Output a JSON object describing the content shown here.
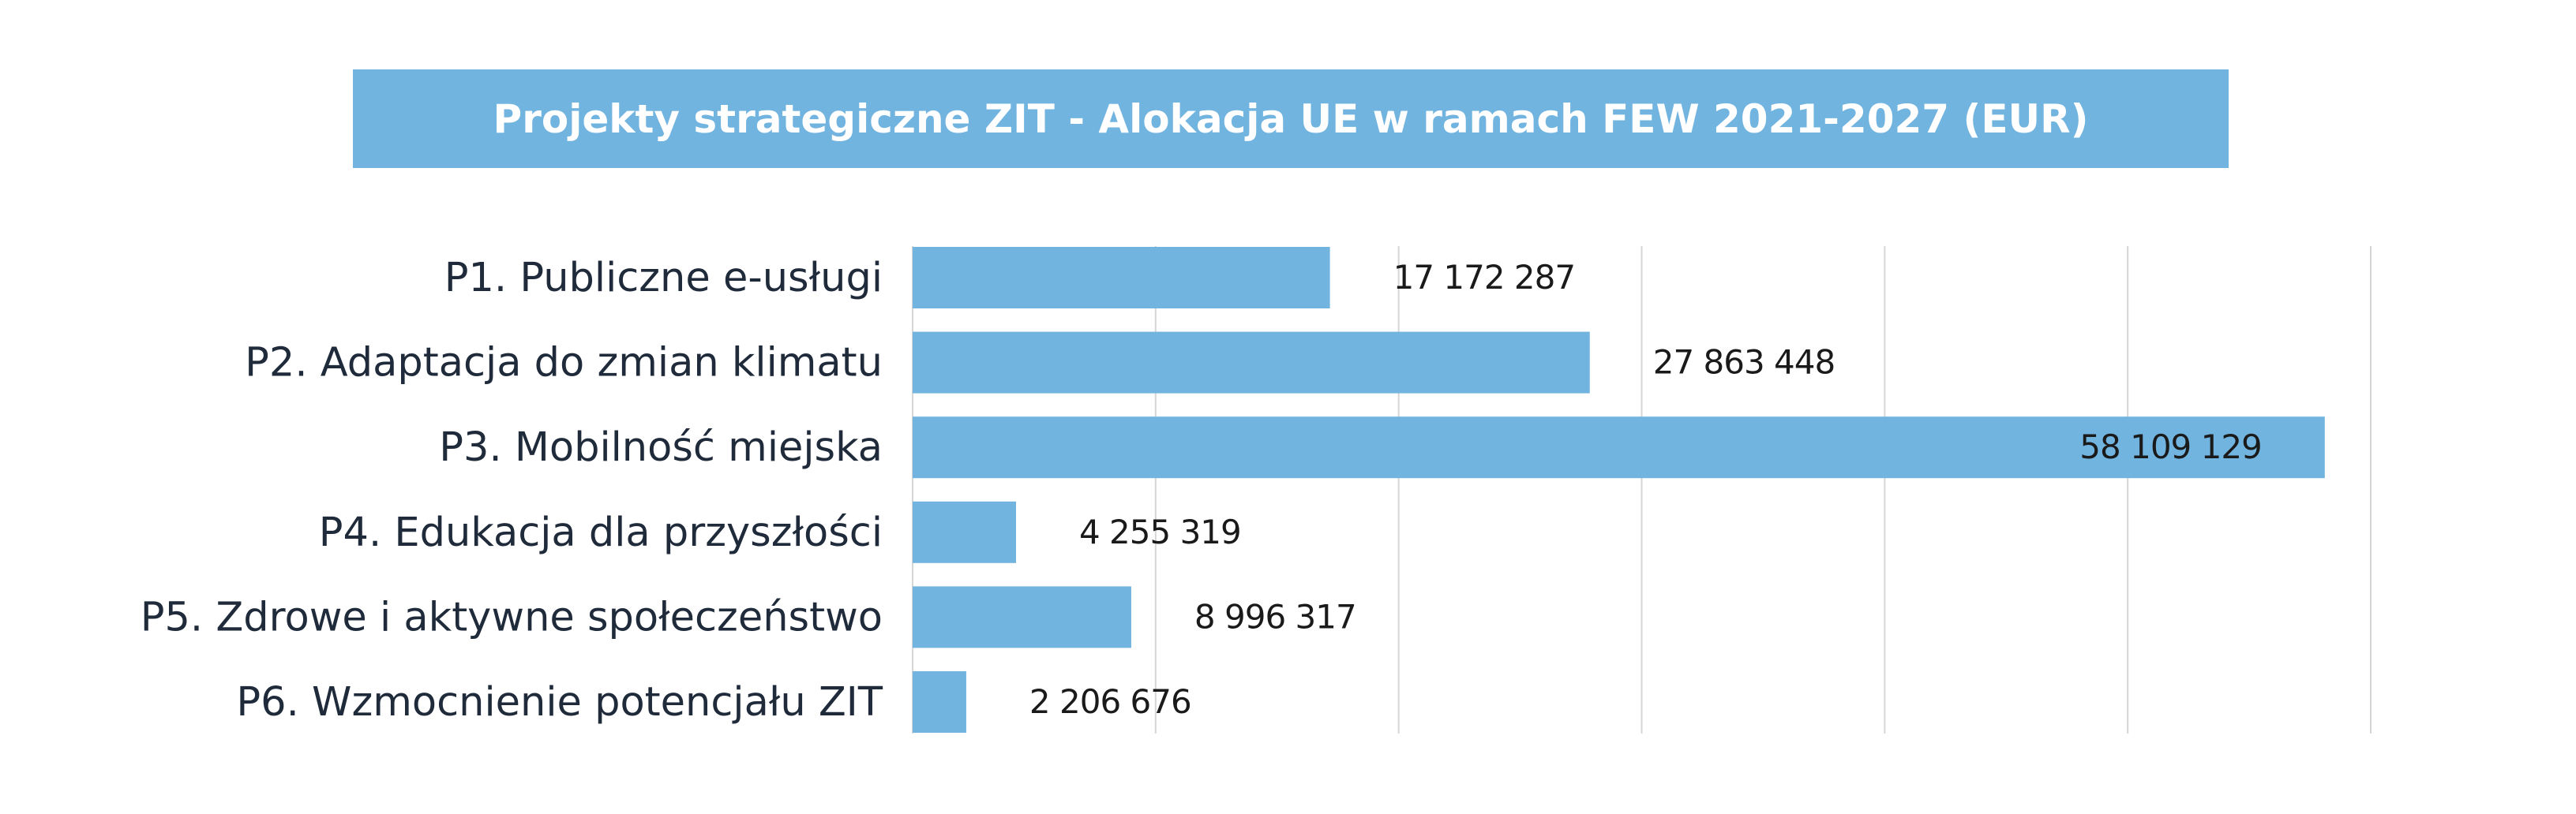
{
  "chart_data": {
    "type": "bar",
    "orientation": "horizontal",
    "title": "Projekty strategiczne ZIT - Alokacja UE w ramach FEW 2021-2027 (EUR)",
    "categories": [
      "P1. Publiczne e-usługi",
      "P2. Adaptacja do zmian klimatu",
      "P3. Mobilność miejska",
      "P4. Edukacja dla przyszłości",
      "P5. Zdrowe i aktywne społeczeństwo",
      "P6. Wzmocnienie potencjału ZIT"
    ],
    "values": [
      17172287,
      27863448,
      58109129,
      4255319,
      8996317,
      2206676
    ],
    "value_labels": [
      "17 172 287",
      "27 863 448",
      "58 109 129",
      "4 255 319",
      "8 996 317",
      "2 206 676"
    ],
    "xlim": [
      0,
      60000000
    ],
    "grid": true,
    "legend": "none",
    "bar_color": "#71b4e0",
    "title_bg_color": "#71b4e0"
  }
}
